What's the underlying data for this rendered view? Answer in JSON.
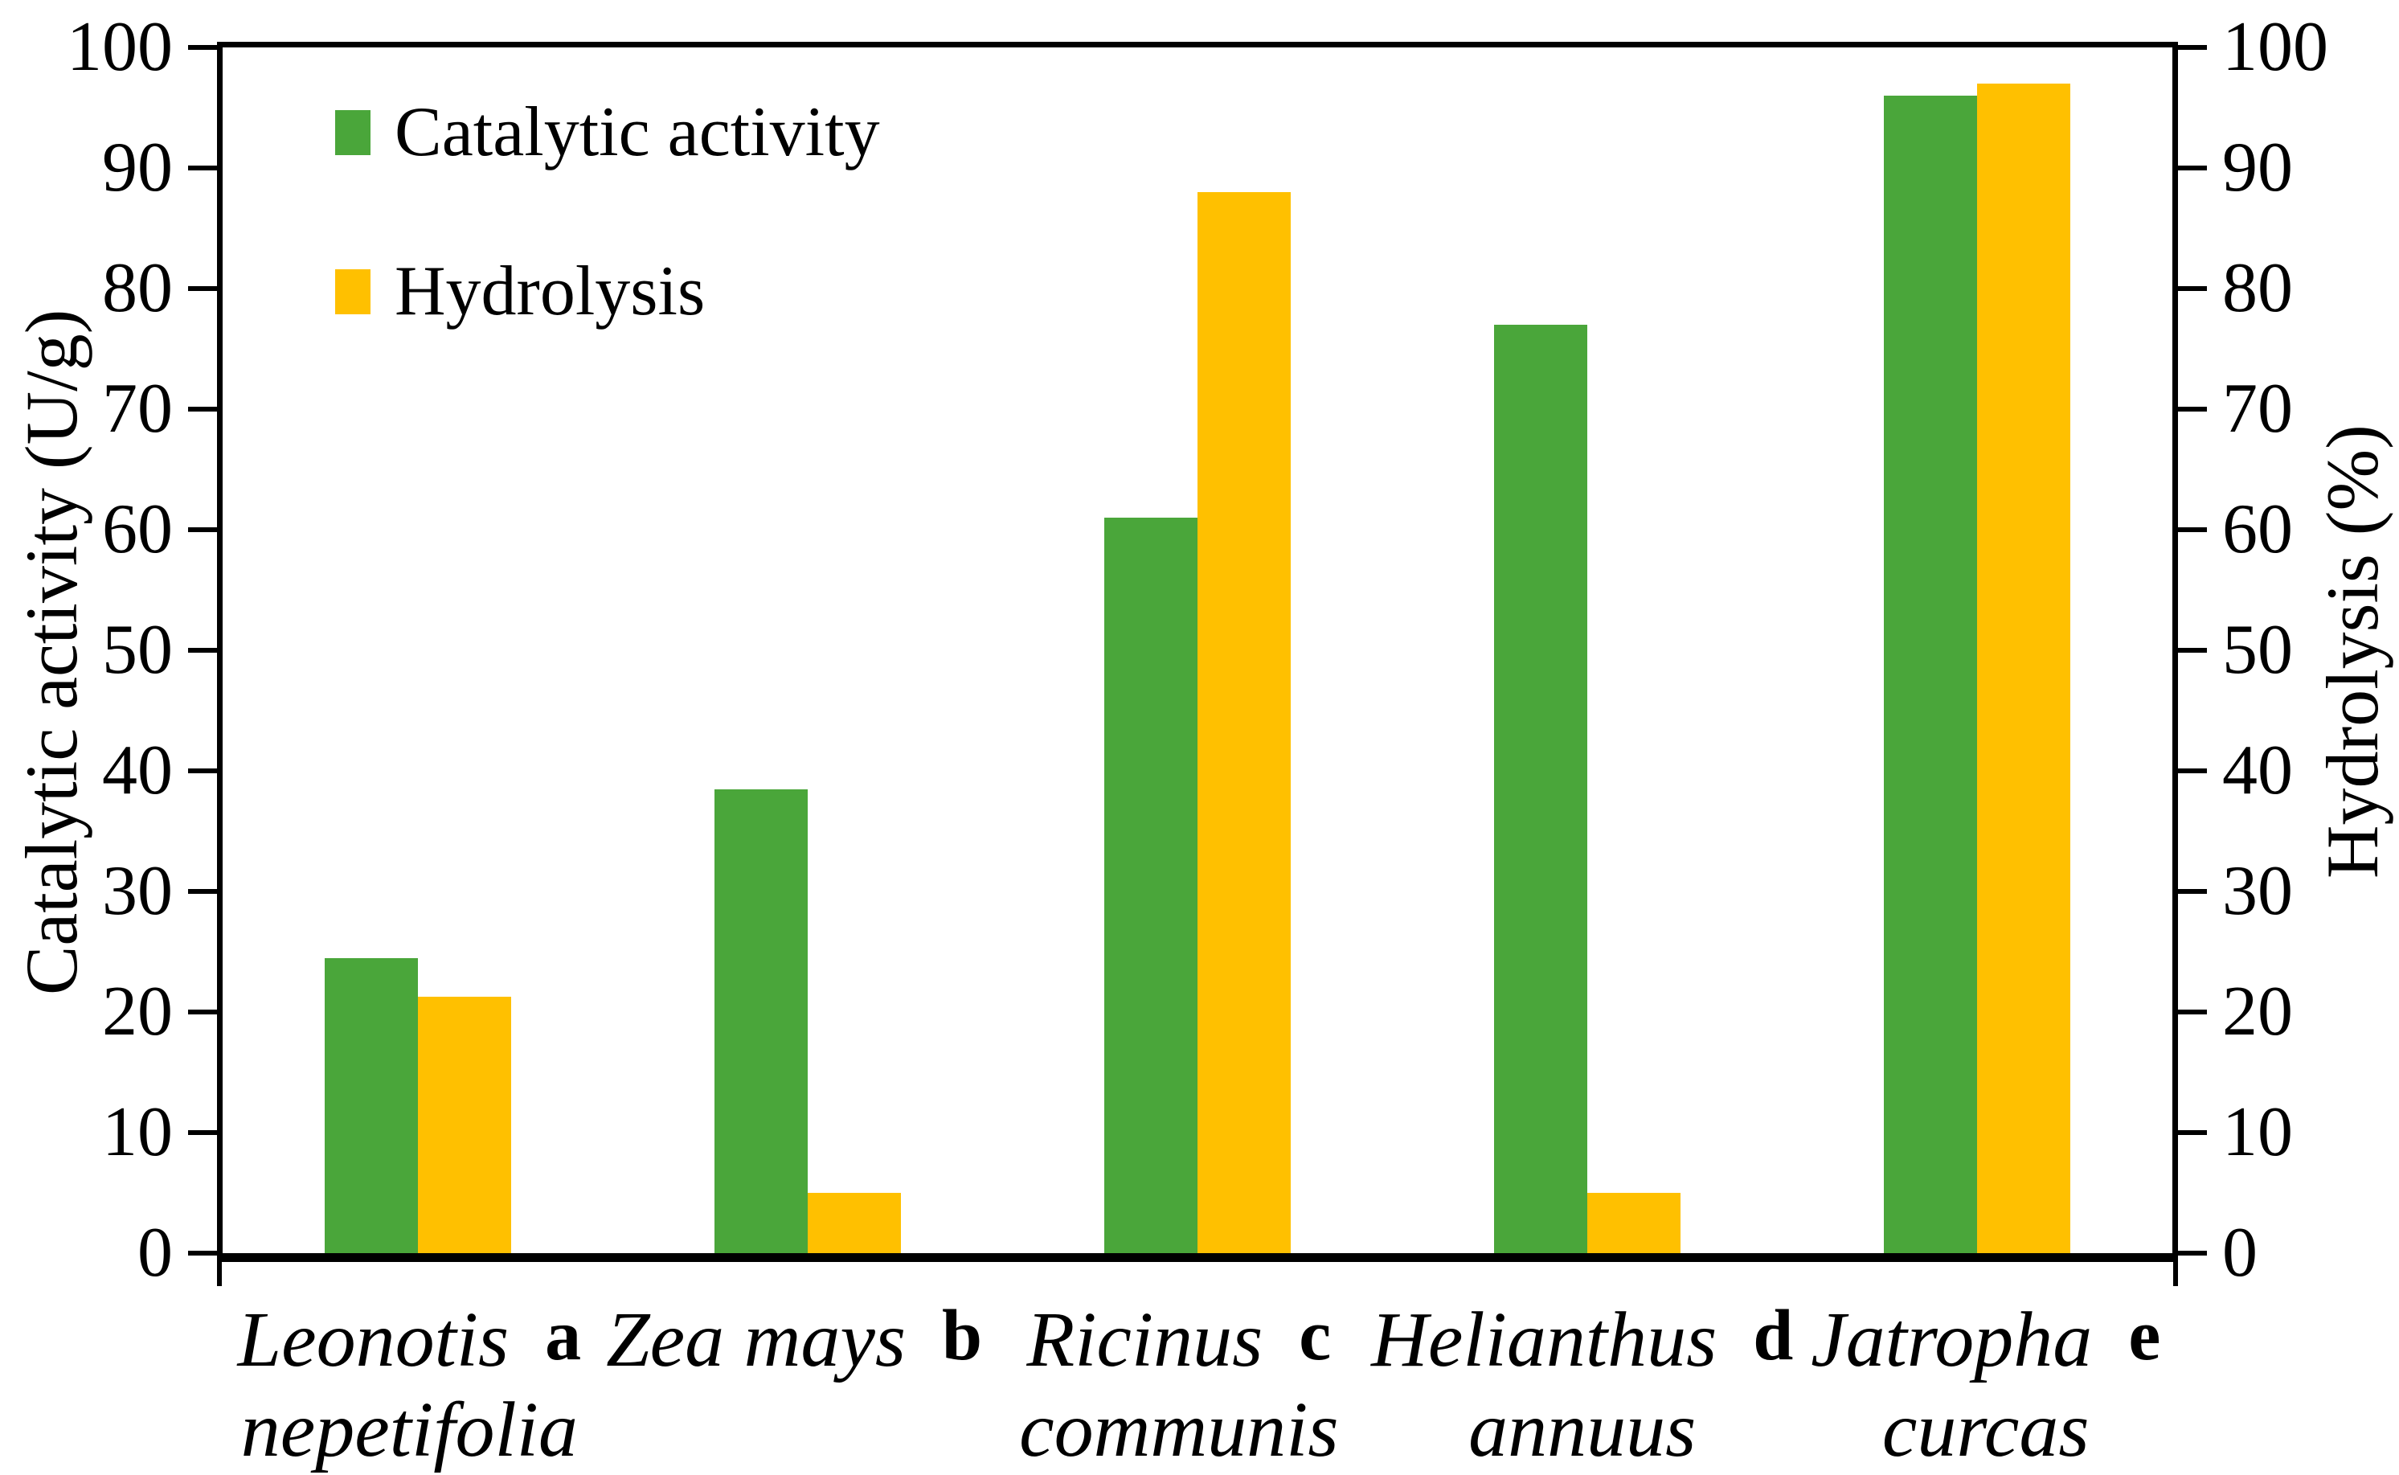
{
  "chart_data": {
    "type": "bar",
    "categories": [
      {
        "name_line1": "Leonotis",
        "name_line2": "nepetifolia",
        "letter": "a"
      },
      {
        "name_line1": "Zea mays",
        "name_line2": "",
        "letter": "b"
      },
      {
        "name_line1": "Ricinus",
        "name_line2": "communis",
        "letter": "c"
      },
      {
        "name_line1": "Helianthus",
        "name_line2": "annuus",
        "letter": "d"
      },
      {
        "name_line1": "Jatropha",
        "name_line2": "curcas",
        "letter": "e"
      }
    ],
    "series": [
      {
        "name": "Catalytic activity",
        "color": "#4AA63A",
        "axis": "left",
        "values": [
          24.5,
          38.5,
          61,
          77,
          96
        ]
      },
      {
        "name": "Hydrolysis",
        "color": "#FFC000",
        "axis": "right",
        "values": [
          21.3,
          5,
          88,
          5,
          97
        ]
      }
    ],
    "ylabel_left": "Catalytic activity (U/g)",
    "ylabel_right": "Hydrolysis (%)",
    "ylim": [
      0,
      100
    ],
    "ytick_step": 10,
    "yticks": [
      0,
      10,
      20,
      30,
      40,
      50,
      60,
      70,
      80,
      90,
      100
    ],
    "grid": false,
    "legend_position": "top-left-inside",
    "axis_color": "#000000"
  }
}
